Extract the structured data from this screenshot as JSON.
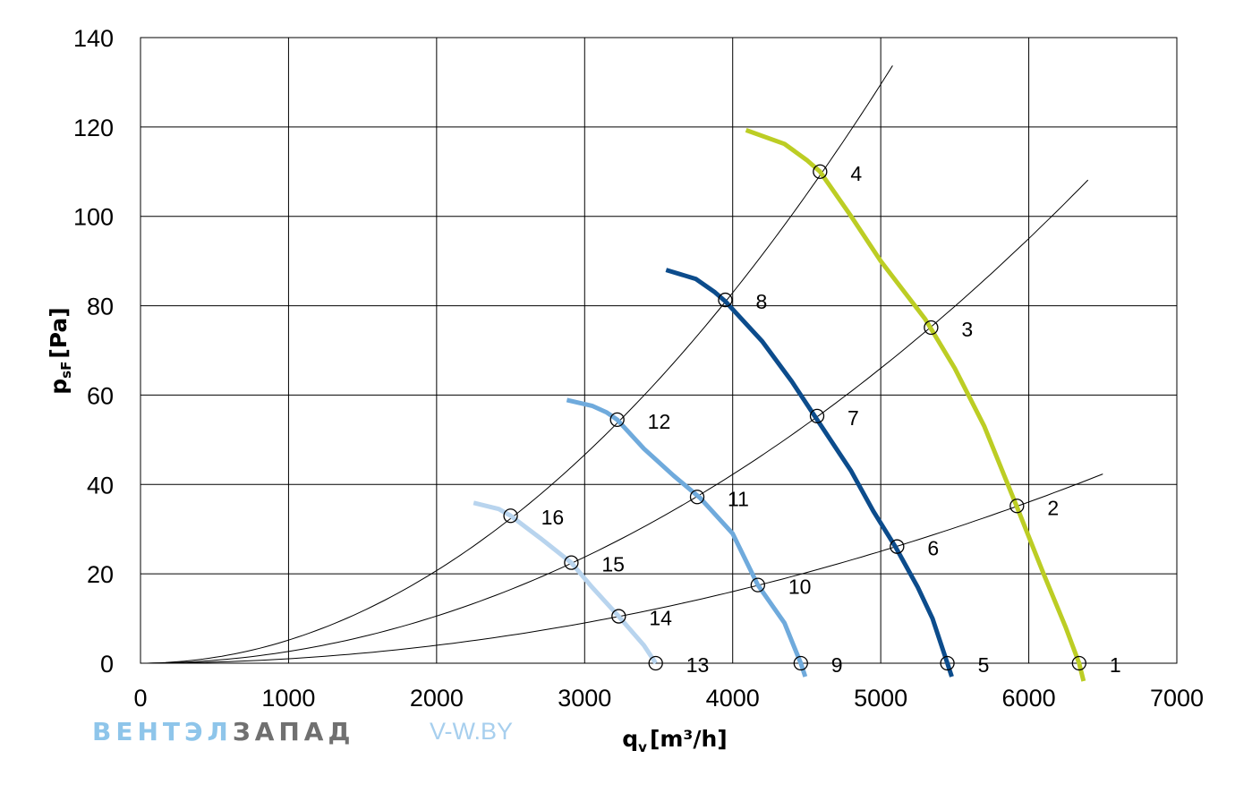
{
  "chart_data": {
    "type": "line",
    "xlabel_main": "q",
    "xlabel_sub": "v",
    "xlabel_unit": "[m³/h]",
    "ylabel_main": "p",
    "ylabel_sub": "sF",
    "ylabel_unit": "[Pa]",
    "xlim": [
      0,
      7000
    ],
    "ylim": [
      0,
      140
    ],
    "xticks": [
      0,
      1000,
      2000,
      3000,
      4000,
      5000,
      6000,
      7000
    ],
    "yticks": [
      0,
      20,
      40,
      60,
      80,
      100,
      120,
      140
    ],
    "grid": true,
    "series": [
      {
        "color": "#bccd24",
        "points": [
          [
            4090,
            119.3
          ],
          [
            4350,
            116.2
          ],
          [
            4500,
            112.6
          ],
          [
            4590,
            110
          ],
          [
            4800,
            100
          ],
          [
            5000,
            90
          ],
          [
            5300,
            77
          ],
          [
            5500,
            66
          ],
          [
            5700,
            53
          ],
          [
            5920,
            35
          ],
          [
            6100,
            20
          ],
          [
            6250,
            8
          ],
          [
            6340,
            0
          ],
          [
            6370,
            -4
          ]
        ]
      },
      {
        "color": "#0c4c8c",
        "points": [
          [
            3550,
            88
          ],
          [
            3750,
            86
          ],
          [
            3880,
            83
          ],
          [
            3950,
            81
          ],
          [
            4200,
            72
          ],
          [
            4400,
            63
          ],
          [
            4600,
            53
          ],
          [
            4800,
            43
          ],
          [
            4950,
            34
          ],
          [
            5100,
            26
          ],
          [
            5250,
            17
          ],
          [
            5350,
            10
          ],
          [
            5450,
            0
          ],
          [
            5480,
            -3
          ]
        ]
      },
      {
        "color": "#6faadc",
        "points": [
          [
            2880,
            58.9
          ],
          [
            3050,
            57.6
          ],
          [
            3150,
            56.1
          ],
          [
            3220,
            54.5
          ],
          [
            3400,
            48
          ],
          [
            3600,
            42
          ],
          [
            3780,
            37
          ],
          [
            4000,
            29
          ],
          [
            4170,
            17.5
          ],
          [
            4350,
            9
          ],
          [
            4460,
            0
          ],
          [
            4490,
            -3
          ]
        ]
      },
      {
        "color": "#b8d4ee",
        "points": [
          [
            2250,
            35.9
          ],
          [
            2420,
            34.5
          ],
          [
            2500,
            33
          ],
          [
            2700,
            28
          ],
          [
            2910,
            22.5
          ],
          [
            3050,
            17
          ],
          [
            3230,
            10.5
          ],
          [
            3400,
            4
          ],
          [
            3480,
            0
          ]
        ]
      }
    ],
    "system_curves": [
      {
        "k": 5.182e-06,
        "xmax": 5080
      },
      {
        "k": 2.64e-06,
        "xmax": 6400
      },
      {
        "k": 1.002e-06,
        "xmax": 6500
      }
    ],
    "markers": [
      {
        "label": "1",
        "x": 6340,
        "y": 0
      },
      {
        "label": "2",
        "x": 5920,
        "y": 35.2
      },
      {
        "label": "3",
        "x": 5340,
        "y": 75.1
      },
      {
        "label": "4",
        "x": 4590,
        "y": 110
      },
      {
        "label": "5",
        "x": 5450,
        "y": 0
      },
      {
        "label": "6",
        "x": 5110,
        "y": 26.1
      },
      {
        "label": "7",
        "x": 4570,
        "y": 55.3
      },
      {
        "label": "8",
        "x": 3950,
        "y": 81.3
      },
      {
        "label": "9",
        "x": 4460,
        "y": 0
      },
      {
        "label": "10",
        "x": 4170,
        "y": 17.5
      },
      {
        "label": "11",
        "x": 3760,
        "y": 37.2
      },
      {
        "label": "12",
        "x": 3220,
        "y": 54.5
      },
      {
        "label": "13",
        "x": 3480,
        "y": 0
      },
      {
        "label": "14",
        "x": 3230,
        "y": 10.5
      },
      {
        "label": "15",
        "x": 2910,
        "y": 22.5
      },
      {
        "label": "16",
        "x": 2500,
        "y": 33
      }
    ]
  },
  "watermark": {
    "brand_part1": "ВЕНТЭЛ",
    "brand_part2": "ЗАПАД",
    "url": "V-W.BY"
  }
}
